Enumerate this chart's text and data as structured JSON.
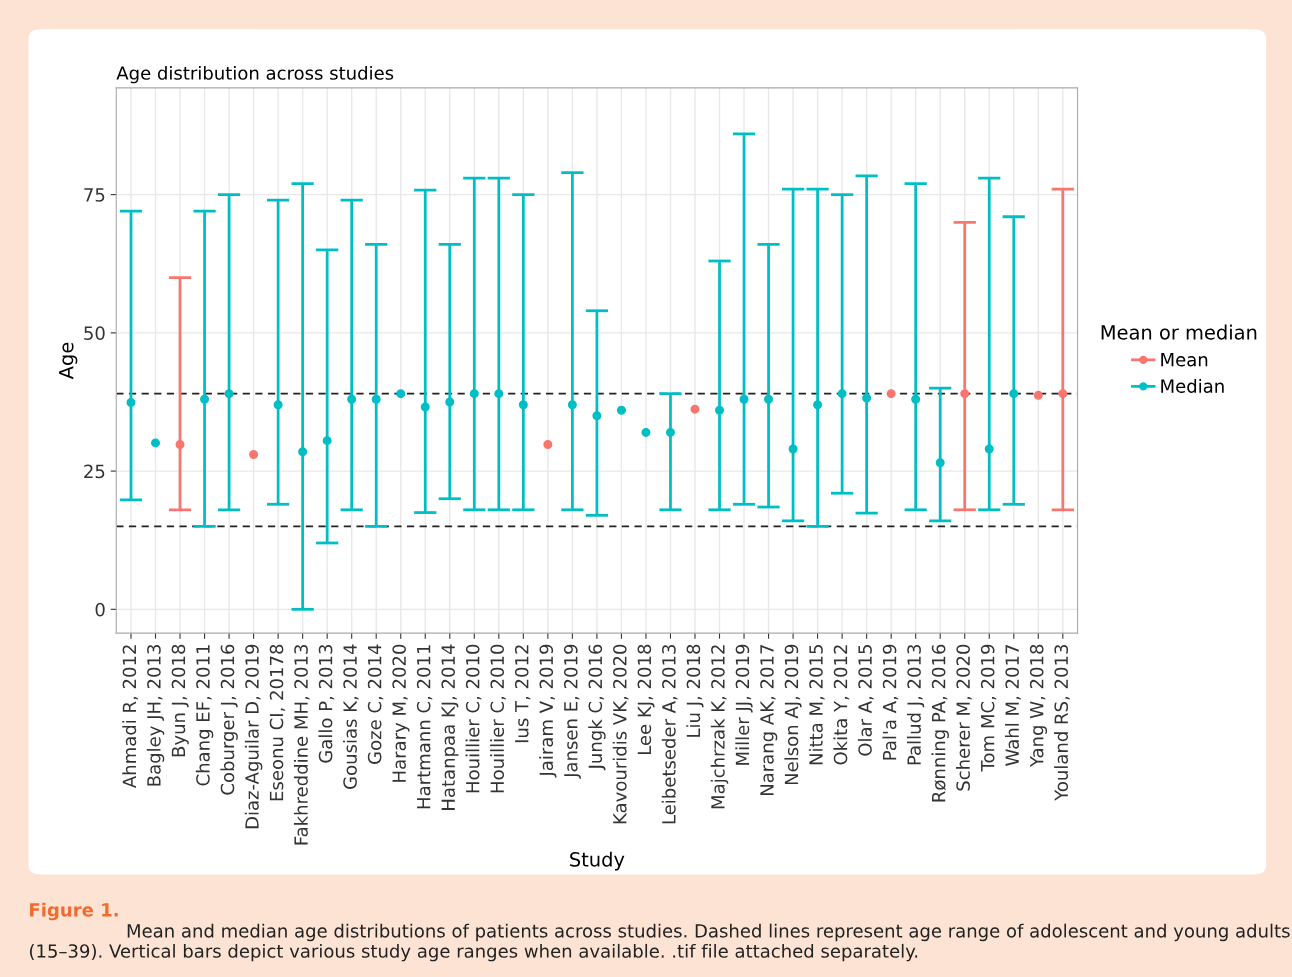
{
  "chart_data": {
    "type": "scatter",
    "title": "Age distribution across studies",
    "xlabel": "Study",
    "ylabel": "Age",
    "categories": [
      "Ahmadi R, 2012",
      "Bagley JH, 2013",
      "Byun J, 2018",
      "Chang EF, 2011",
      "Coburger J, 2016",
      "Diaz-Aguilar D, 2019",
      "Eseonu CI, 20178",
      "Fakhreddine MH, 2013",
      "Gallo P, 2013",
      "Gousias K, 2014",
      "Goze C, 2014",
      "Harary M, 2020",
      "Hartmann C, 2011",
      "Hatanpaa KJ, 2014",
      "Houillier C, 2010",
      "Houillier C, 2010",
      "Ius T, 2012",
      "Jairam V, 2019",
      "Jansen E, 2019",
      "Jungk C, 2016",
      "Kavouridis VK, 2020",
      "Lee KJ, 2018",
      "Leibetseder A, 2013",
      "Liu J, 2018",
      "Majchrzak K, 2012",
      "Miller JJ, 2019",
      "Narang AK, 2017",
      "Nelson AJ, 2019",
      "Nitta M, 2015",
      "Okita Y, 2012",
      "Olar A, 2015",
      "Pal'a A, 2019",
      "Pallud J, 2013",
      "Rønning PA, 2016",
      "Scherer M, 2020",
      "Tom MC, 2019",
      "Wahl M, 2017",
      "Yang W, 2018",
      "Youland RS, 2013"
    ],
    "series": [
      {
        "name": "Mean",
        "color": "#f8766d",
        "values": [
          null,
          null,
          29.8,
          null,
          null,
          28,
          null,
          null,
          null,
          null,
          null,
          null,
          null,
          null,
          null,
          null,
          null,
          29.8,
          null,
          null,
          null,
          null,
          null,
          36.2,
          null,
          null,
          null,
          null,
          null,
          null,
          null,
          39,
          null,
          null,
          39,
          null,
          null,
          38.7,
          39
        ],
        "errors": [
          null,
          null,
          [
            18,
            60
          ],
          null,
          null,
          null,
          null,
          null,
          null,
          null,
          null,
          null,
          null,
          null,
          null,
          null,
          null,
          null,
          null,
          null,
          null,
          null,
          null,
          null,
          null,
          null,
          null,
          null,
          null,
          null,
          null,
          null,
          null,
          null,
          [
            18,
            70
          ],
          null,
          null,
          null,
          [
            18,
            76
          ]
        ]
      },
      {
        "name": "Median",
        "color": "#00bfc4",
        "values": [
          37.4,
          30.1,
          null,
          38,
          39,
          null,
          37,
          28.5,
          30.5,
          38,
          38,
          39,
          36.6,
          37.5,
          39,
          39,
          37,
          null,
          37,
          35,
          36,
          32,
          32,
          null,
          36,
          38,
          38,
          29,
          37,
          39,
          38.2,
          null,
          38,
          26.5,
          null,
          29,
          39,
          null,
          null
        ],
        "errors": [
          [
            19.8,
            72
          ],
          null,
          null,
          [
            15,
            72
          ],
          [
            18,
            75
          ],
          null,
          [
            19,
            74
          ],
          [
            0,
            77
          ],
          [
            12,
            65
          ],
          [
            18,
            74
          ],
          [
            15,
            66
          ],
          null,
          [
            17.5,
            75.8
          ],
          [
            20,
            66
          ],
          [
            18,
            78
          ],
          [
            18,
            78
          ],
          [
            18,
            75
          ],
          null,
          [
            18,
            79
          ],
          [
            17,
            54
          ],
          null,
          null,
          [
            18,
            39
          ],
          null,
          [
            18,
            63
          ],
          [
            19,
            86
          ],
          [
            18.5,
            66
          ],
          [
            16,
            76
          ],
          [
            15,
            76
          ],
          [
            21,
            75
          ],
          [
            17.4,
            78.4
          ],
          null,
          [
            18,
            77
          ],
          [
            16,
            40
          ],
          null,
          [
            18,
            78
          ],
          [
            19,
            71
          ],
          null,
          null
        ]
      }
    ],
    "ylim": [
      -4.3,
      94.3
    ],
    "yticks": [
      0,
      25,
      50,
      75
    ],
    "grid": true,
    "marker": "circle",
    "legend": "right",
    "legend_title": "Mean or median",
    "ref_lines": [
      {
        "axis": "y",
        "value": 15,
        "color": "#222222",
        "line_style": "dashed"
      },
      {
        "axis": "y",
        "value": 39,
        "color": "#222222",
        "line_style": "dashed"
      }
    ],
    "annotations": [
      "Figure 1.",
      "Mean and median age distributions of patients across studies. Dashed lines represent age range of adolescent and young adults (15–39). Vertical bars depict various study age ranges when available. .tif file attached separately."
    ]
  }
}
